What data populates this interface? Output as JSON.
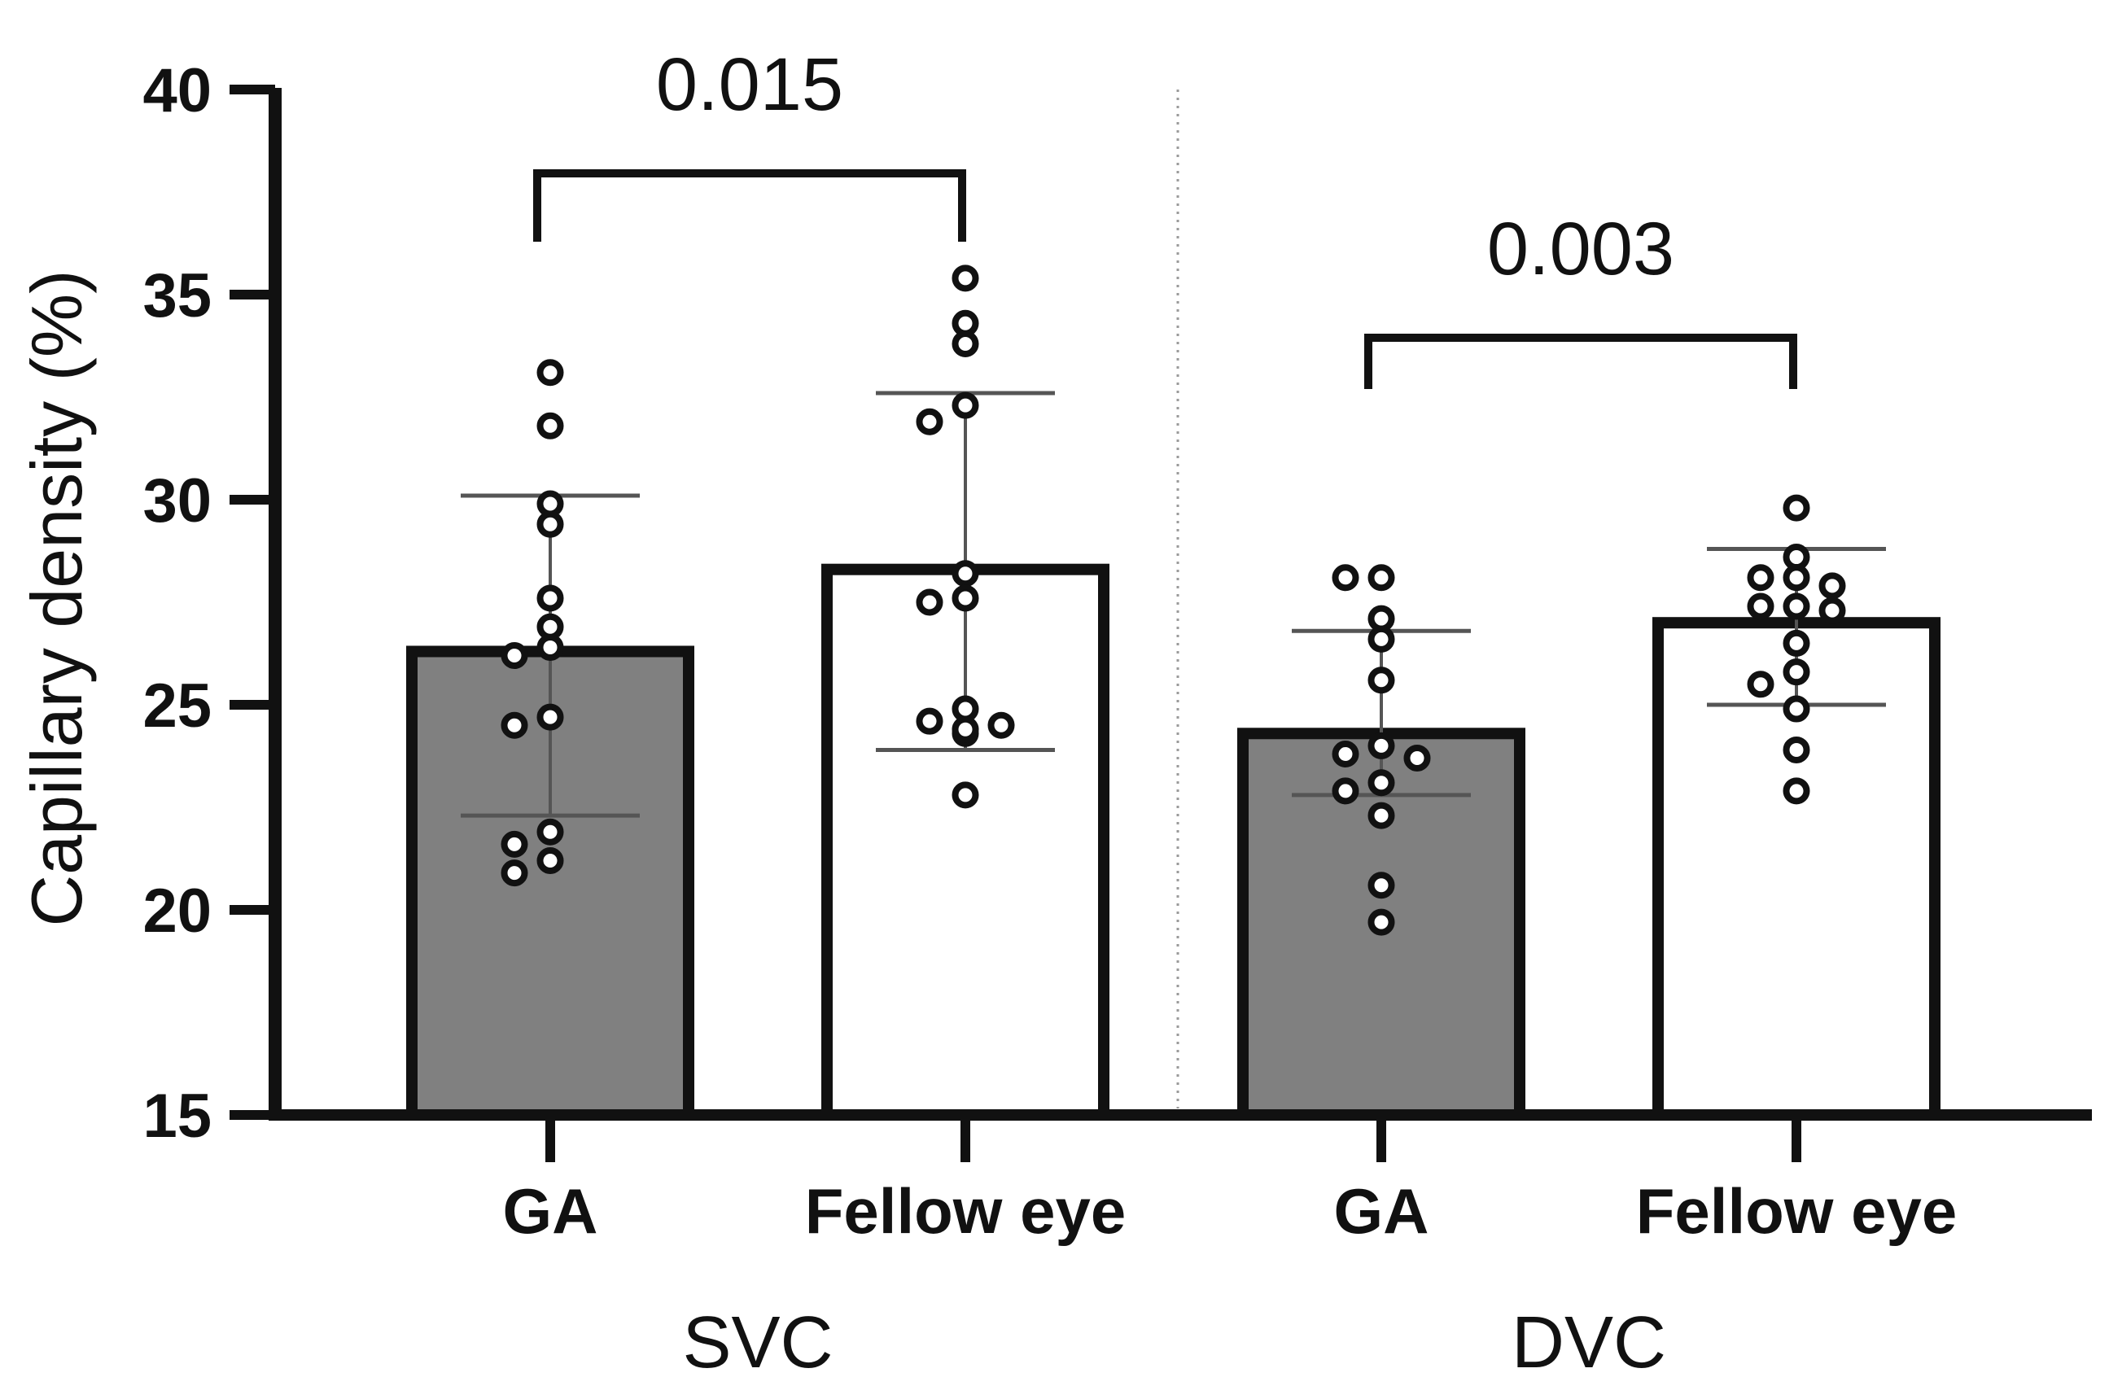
{
  "chart_data": {
    "type": "bar",
    "ylabel": "Capillary density (%)",
    "xlabel": "",
    "ylim": [
      15,
      40
    ],
    "yticks": [
      15,
      20,
      25,
      30,
      35,
      40
    ],
    "groups": [
      {
        "name": "SVC",
        "comparison_p": "0.015",
        "bars": [
          {
            "label": "GA",
            "fill": "#808080",
            "mean": 26.3,
            "sd_low": 22.3,
            "sd_high": 30.1,
            "points": [
              33.1,
              31.8,
              29.9,
              29.4,
              27.6,
              26.9,
              26.4,
              26.2,
              24.7,
              24.5,
              21.9,
              21.6,
              21.2,
              20.9
            ]
          },
          {
            "label": "Fellow eye",
            "fill": "#ffffff",
            "mean": 28.3,
            "sd_low": 23.9,
            "sd_high": 32.6,
            "points": [
              35.4,
              34.3,
              33.8,
              32.3,
              31.9,
              28.2,
              27.6,
              27.5,
              24.9,
              24.6,
              24.5,
              24.3,
              24.4,
              22.8
            ]
          }
        ]
      },
      {
        "name": "DVC",
        "comparison_p": "0.003",
        "bars": [
          {
            "label": "GA",
            "fill": "#808080",
            "mean": 24.3,
            "sd_low": 22.8,
            "sd_high": 26.8,
            "points": [
              28.1,
              28.1,
              27.1,
              26.6,
              25.6,
              24.0,
              23.8,
              23.7,
              23.1,
              22.9,
              22.3,
              20.6,
              19.7
            ]
          },
          {
            "label": "Fellow eye",
            "fill": "#ffffff",
            "mean": 27.0,
            "sd_low": 25.0,
            "sd_high": 28.8,
            "points": [
              29.8,
              28.6,
              28.1,
              28.1,
              27.9,
              27.4,
              27.4,
              27.3,
              26.5,
              25.8,
              25.5,
              24.9,
              23.9,
              22.9
            ]
          }
        ]
      }
    ]
  }
}
